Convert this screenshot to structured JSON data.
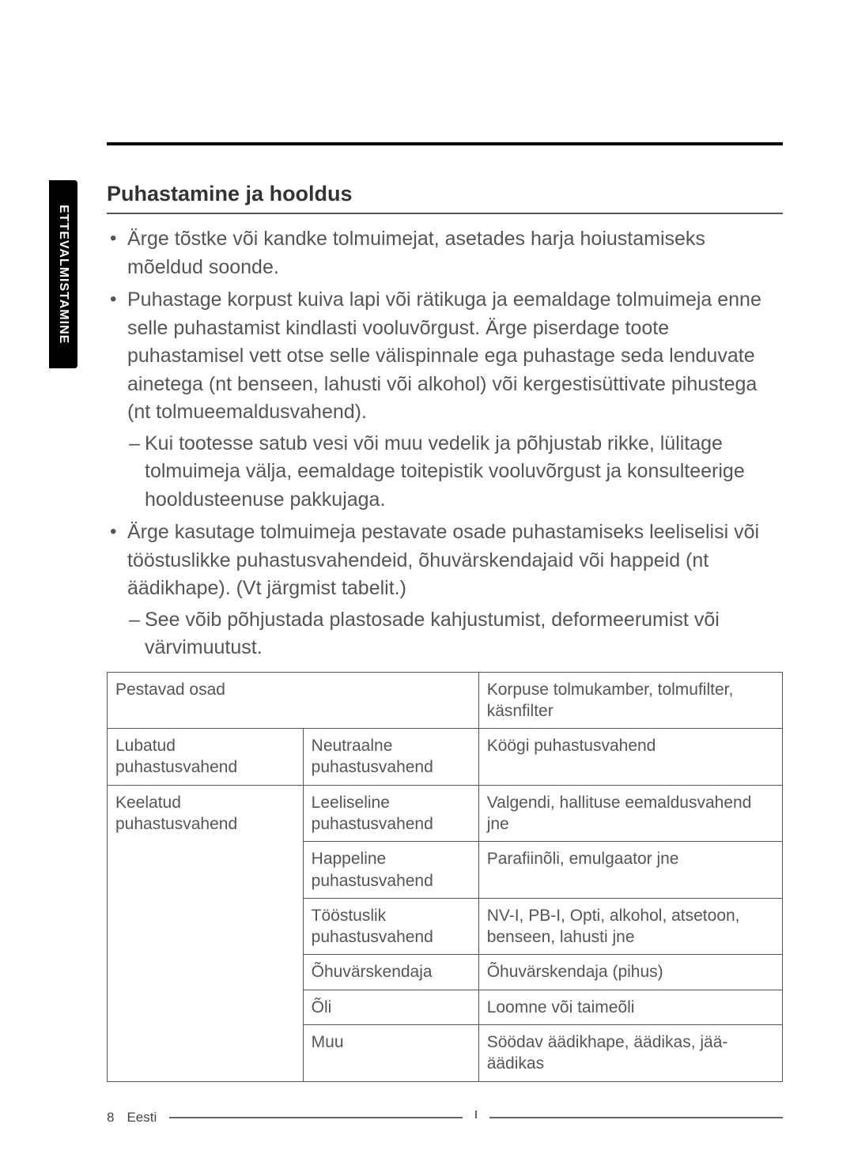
{
  "sideTab": "ETTEVALMISTAMINE",
  "sectionTitle": "Puhastamine ja hooldus",
  "bullets": [
    {
      "text": "Ärge tõstke või kandke tolmuimejat, asetades harja hoiustamiseks mõeldud soonde.",
      "sub": []
    },
    {
      "text": "Puhastage korpust kuiva lapi või rätikuga ja eemaldage tolmuimeja enne selle puhastamist kindlasti vooluvõrgust. Ärge piserdage toote puhastamisel vett otse selle välispinnale ega puhastage seda lenduvate ainetega (nt benseen, lahusti või alkohol) või kergestisüttivate pihustega (nt tolmueemaldusvahend).",
      "sub": [
        "Kui tootesse satub vesi või muu vedelik ja põhjustab rikke, lülitage tolmuimeja välja, eemaldage toitepistik vooluvõrgust ja konsulteerige hooldusteenuse pakkujaga."
      ]
    },
    {
      "text": "Ärge kasutage tolmuimeja pestavate osade puhastamiseks leeliselisi või tööstuslikke puhastusvahendeid, õhuvärskendajaid või happeid (nt äädikhape). (Vt järgmist tabelit.)",
      "sub": [
        "See võib põhjustada plastosade kahjustumist, deformeerumist või värvimuutust."
      ]
    }
  ],
  "table": {
    "rows": [
      {
        "c1": "Pestavad osad",
        "c1_colspan": 2,
        "c3": "Korpuse tolmukamber, tolmufilter, käsnfilter"
      },
      {
        "c1": "Lubatud puhastusvahend",
        "c2": "Neutraalne puhastusvahend",
        "c3": "Köögi puhastusvahend"
      },
      {
        "c1": "Keelatud puhastusvahend",
        "c1_rowspan": 6,
        "c2": "Leeliseline puhastusvahend",
        "c3": "Valgendi, hallituse eemaldusvahend jne"
      },
      {
        "c2": "Happeline puhastusvahend",
        "c3": "Parafiinõli, emulgaator jne"
      },
      {
        "c2": "Tööstuslik puhastusvahend",
        "c3": "NV-I, PB-I, Opti, alkohol, atsetoon, benseen, lahusti jne"
      },
      {
        "c2": "Õhuvärskendaja",
        "c3": "Õhuvärskendaja (pihus)"
      },
      {
        "c2": "Õli",
        "c3": "Loomne või taimeõli"
      },
      {
        "c2": "Muu",
        "c3": "Söödav äädikhape, äädikas, jää-äädikas"
      }
    ],
    "col1_width": "29%",
    "col2_width": "26%",
    "col3_width": "45%"
  },
  "footer": {
    "pageNumber": "8",
    "language": "Eesti"
  },
  "colors": {
    "text": "#555555",
    "border": "#555555",
    "tab_bg": "#000000",
    "tab_fg": "#ffffff"
  }
}
